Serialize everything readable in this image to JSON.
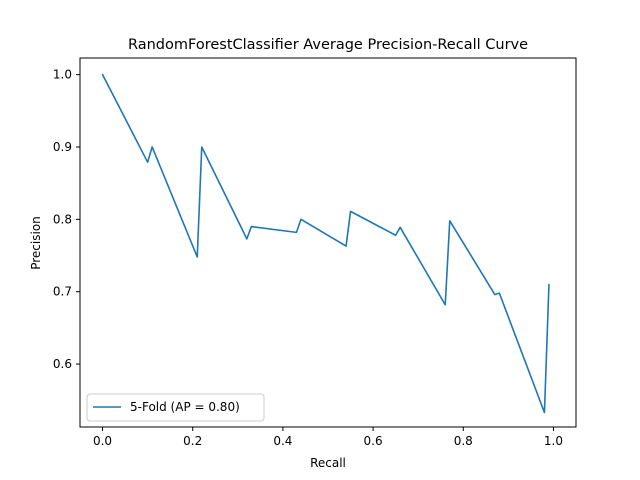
{
  "chart_data": {
    "type": "line",
    "title": "RandomForestClassifier Average Precision-Recall Curve",
    "xlabel": "Recall",
    "ylabel": "Precision",
    "xlim": [
      -0.05,
      1.05
    ],
    "ylim": [
      0.513,
      1.023
    ],
    "x_ticks": [
      0.0,
      0.2,
      0.4,
      0.6,
      0.8,
      1.0
    ],
    "x_tick_labels": [
      "0.0",
      "0.2",
      "0.4",
      "0.6",
      "0.8",
      "1.0"
    ],
    "y_ticks": [
      0.6,
      0.7,
      0.8,
      0.9,
      1.0
    ],
    "y_tick_labels": [
      "0.6",
      "0.7",
      "0.8",
      "0.9",
      "1.0"
    ],
    "grid": false,
    "legend_position": "lower-left",
    "series": [
      {
        "name": "5-Fold (AP = 0.80)",
        "color": "#1f77b4",
        "x": [
          0.0,
          0.1,
          0.11,
          0.21,
          0.22,
          0.32,
          0.33,
          0.43,
          0.44,
          0.54,
          0.55,
          0.65,
          0.66,
          0.76,
          0.77,
          0.87,
          0.88,
          0.98,
          0.99
        ],
        "y": [
          1.0,
          0.879,
          0.9,
          0.748,
          0.9,
          0.773,
          0.79,
          0.782,
          0.8,
          0.763,
          0.811,
          0.778,
          0.789,
          0.682,
          0.798,
          0.696,
          0.698,
          0.533,
          0.71
        ]
      }
    ]
  }
}
